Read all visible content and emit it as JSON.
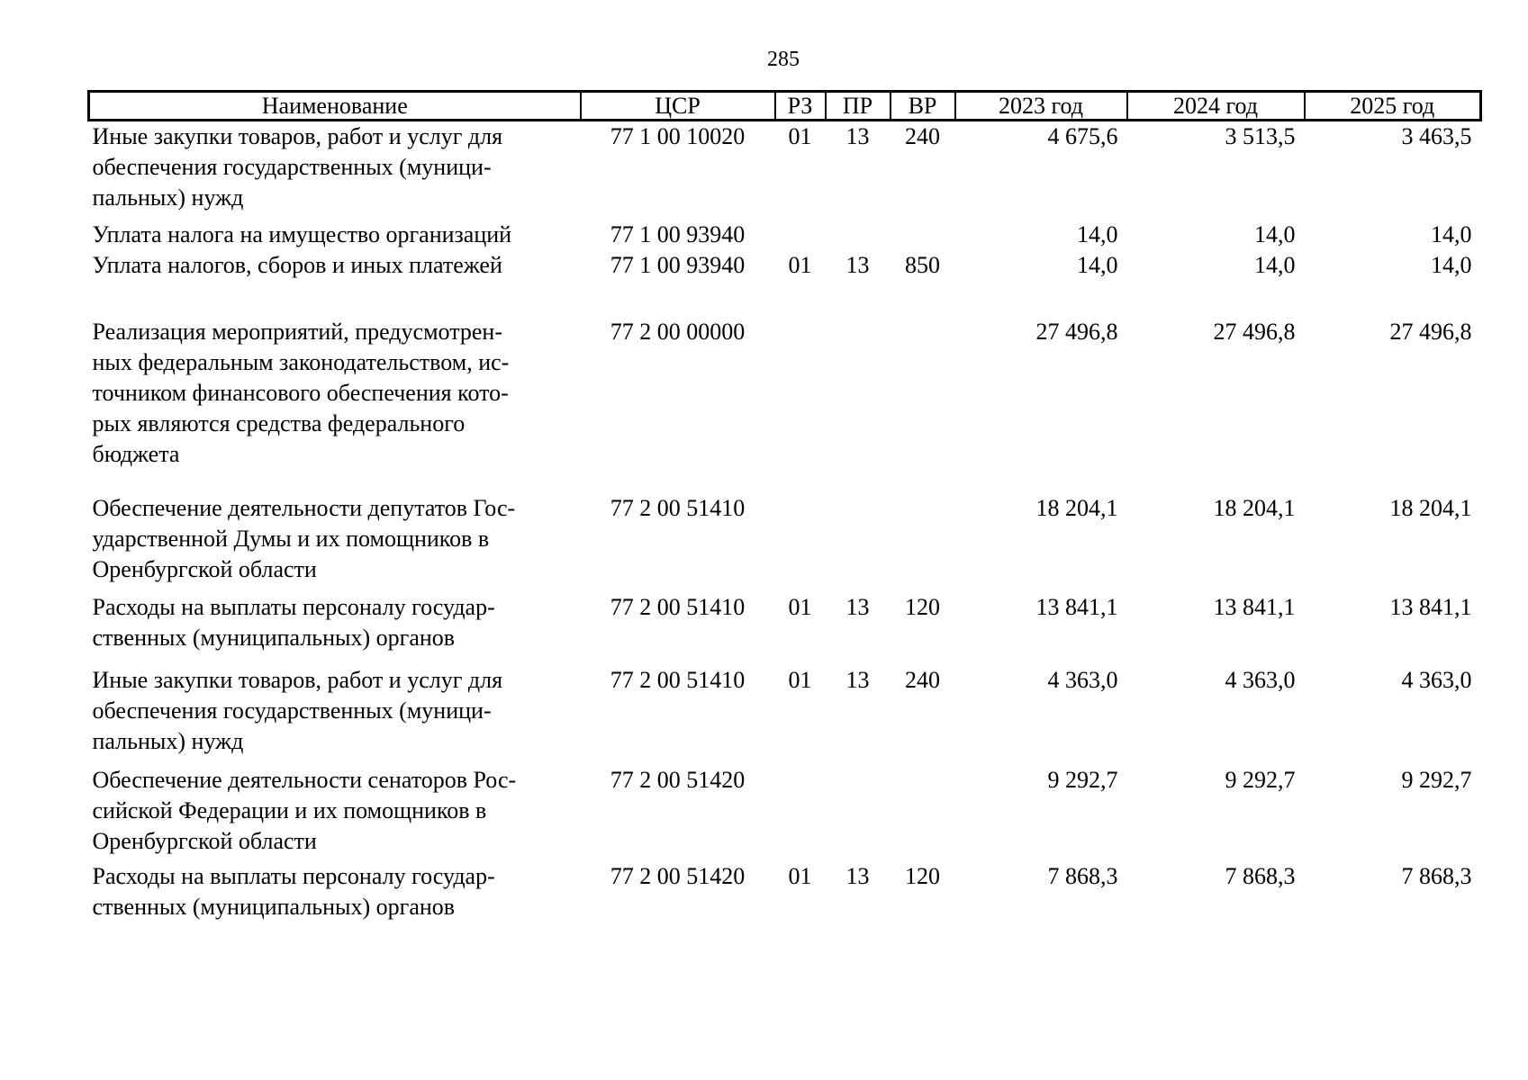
{
  "page": {
    "number": "285"
  },
  "table": {
    "headers": {
      "name": "Наименование",
      "csr": "ЦСР",
      "rz": "РЗ",
      "pr": "ПР",
      "vr": "ВР",
      "y2023": "2023 год",
      "y2024": "2024 год",
      "y2025": "2025 год"
    },
    "rows": [
      {
        "name": "Иные закупки товаров, работ и услуг для\nобеспечения государственных (муници-\nпальных) нужд",
        "csr": "77 1 00 10020",
        "rz": "01",
        "pr": "13",
        "vr": "240",
        "y2023": "4 675,6",
        "y2024": "3 513,5",
        "y2025": "3 463,5"
      },
      {
        "name": "Уплата налога на имущество организаций",
        "csr": "77 1 00 93940",
        "rz": "",
        "pr": "",
        "vr": "",
        "y2023": "14,0",
        "y2024": "14,0",
        "y2025": "14,0"
      },
      {
        "name": "Уплата налогов, сборов и иных платежей",
        "csr": "77 1 00 93940",
        "rz": "01",
        "pr": "13",
        "vr": "850",
        "y2023": "14,0",
        "y2024": "14,0",
        "y2025": "14,0"
      },
      {
        "name": "Реализация мероприятий, предусмотрен-\nных федеральным законодательством, ис-\nточником финансового обеспечения кото-\nрых являются средства федерального\nбюджета",
        "csr": "77 2 00 00000",
        "rz": "",
        "pr": "",
        "vr": "",
        "y2023": "27 496,8",
        "y2024": "27 496,8",
        "y2025": "27 496,8"
      },
      {
        "name": "Обеспечение деятельности депутатов Гос-\nударственной Думы и их помощников в\nОренбургской области",
        "csr": "77 2 00 51410",
        "rz": "",
        "pr": "",
        "vr": "",
        "y2023": "18 204,1",
        "y2024": "18 204,1",
        "y2025": "18 204,1"
      },
      {
        "name": "Расходы на выплаты персоналу государ-\nственных (муниципальных) органов",
        "csr": "77 2 00 51410",
        "rz": "01",
        "pr": "13",
        "vr": "120",
        "y2023": "13 841,1",
        "y2024": "13 841,1",
        "y2025": "13 841,1"
      },
      {
        "name": "Иные закупки товаров, работ и услуг для\nобеспечения государственных (муници-\nпальных) нужд",
        "csr": "77 2 00 51410",
        "rz": "01",
        "pr": "13",
        "vr": "240",
        "y2023": "4 363,0",
        "y2024": "4 363,0",
        "y2025": "4 363,0"
      },
      {
        "name": "Обеспечение деятельности сенаторов Рос-\nсийской Федерации и их помощников в\nОренбургской области",
        "csr": "77 2 00 51420",
        "rz": "",
        "pr": "",
        "vr": "",
        "y2023": "9 292,7",
        "y2024": "9 292,7",
        "y2025": "9 292,7"
      },
      {
        "name": "Расходы на выплаты персоналу государ-\nственных (муниципальных) органов",
        "csr": "77 2 00 51420",
        "rz": "01",
        "pr": "13",
        "vr": "120",
        "y2023": "7 868,3",
        "y2024": "7 868,3",
        "y2025": "7 868,3"
      }
    ]
  }
}
